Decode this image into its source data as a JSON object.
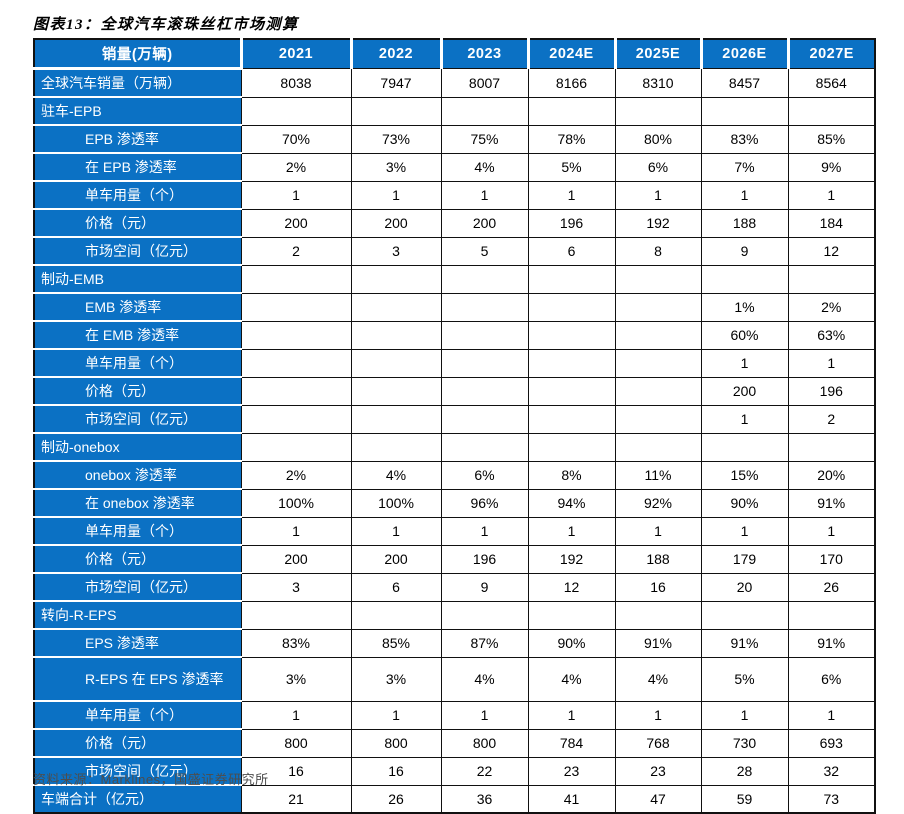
{
  "title": "图表13：全球汽车滚珠丝杠市场测算",
  "colors": {
    "header_bg": "#0b71c4",
    "label_bg": "#0b71c4",
    "header_text": "#ffffff",
    "body_text": "#000000",
    "border": "#111111"
  },
  "table": {
    "header": [
      "销量(万辆)",
      "2021",
      "2022",
      "2023",
      "2024E",
      "2025E",
      "2026E",
      "2027E"
    ],
    "rows": [
      {
        "label": "全球汽车销量（万辆）",
        "style": "plain",
        "values": [
          "8038",
          "7947",
          "8007",
          "8166",
          "8310",
          "8457",
          "8564"
        ]
      },
      {
        "label": "驻车-EPB",
        "style": "section",
        "values": [
          "",
          "",
          "",
          "",
          "",
          "",
          ""
        ]
      },
      {
        "label": "EPB 渗透率",
        "style": "indent",
        "values": [
          "70%",
          "73%",
          "75%",
          "78%",
          "80%",
          "83%",
          "85%"
        ]
      },
      {
        "label": "在 EPB 渗透率",
        "style": "indent",
        "values": [
          "2%",
          "3%",
          "4%",
          "5%",
          "6%",
          "7%",
          "9%"
        ]
      },
      {
        "label": "单车用量（个）",
        "style": "indent",
        "values": [
          "1",
          "1",
          "1",
          "1",
          "1",
          "1",
          "1"
        ]
      },
      {
        "label": "价格（元）",
        "style": "indent",
        "values": [
          "200",
          "200",
          "200",
          "196",
          "192",
          "188",
          "184"
        ]
      },
      {
        "label": "市场空间（亿元）",
        "style": "indent",
        "values": [
          "2",
          "3",
          "5",
          "6",
          "8",
          "9",
          "12"
        ]
      },
      {
        "label": "制动-EMB",
        "style": "section",
        "values": [
          "",
          "",
          "",
          "",
          "",
          "",
          ""
        ]
      },
      {
        "label": "EMB 渗透率",
        "style": "indent",
        "values": [
          "",
          "",
          "",
          "",
          "",
          "1%",
          "2%"
        ]
      },
      {
        "label": "在 EMB 渗透率",
        "style": "indent",
        "values": [
          "",
          "",
          "",
          "",
          "",
          "60%",
          "63%"
        ]
      },
      {
        "label": "单车用量（个）",
        "style": "indent",
        "values": [
          "",
          "",
          "",
          "",
          "",
          "1",
          "1"
        ]
      },
      {
        "label": "价格（元）",
        "style": "indent",
        "values": [
          "",
          "",
          "",
          "",
          "",
          "200",
          "196"
        ]
      },
      {
        "label": "市场空间（亿元）",
        "style": "indent",
        "values": [
          "",
          "",
          "",
          "",
          "",
          "1",
          "2"
        ]
      },
      {
        "label": "制动-onebox",
        "style": "section",
        "values": [
          "",
          "",
          "",
          "",
          "",
          "",
          ""
        ]
      },
      {
        "label": "onebox 渗透率",
        "style": "indent",
        "values": [
          "2%",
          "4%",
          "6%",
          "8%",
          "11%",
          "15%",
          "20%"
        ]
      },
      {
        "label": "在 onebox 渗透率",
        "style": "indent",
        "values": [
          "100%",
          "100%",
          "96%",
          "94%",
          "92%",
          "90%",
          "91%"
        ]
      },
      {
        "label": "单车用量（个）",
        "style": "indent",
        "values": [
          "1",
          "1",
          "1",
          "1",
          "1",
          "1",
          "1"
        ]
      },
      {
        "label": "价格（元）",
        "style": "indent",
        "values": [
          "200",
          "200",
          "196",
          "192",
          "188",
          "179",
          "170"
        ]
      },
      {
        "label": "市场空间（亿元）",
        "style": "indent",
        "values": [
          "3",
          "6",
          "9",
          "12",
          "16",
          "20",
          "26"
        ]
      },
      {
        "label": "转向-R-EPS",
        "style": "section",
        "values": [
          "",
          "",
          "",
          "",
          "",
          "",
          ""
        ]
      },
      {
        "label": "EPS 渗透率",
        "style": "indent",
        "values": [
          "83%",
          "85%",
          "87%",
          "90%",
          "91%",
          "91%",
          "91%"
        ]
      },
      {
        "label": "R-EPS 在 EPS 渗透率",
        "style": "indent tall",
        "values": [
          "3%",
          "3%",
          "4%",
          "4%",
          "4%",
          "5%",
          "6%"
        ]
      },
      {
        "label": "单车用量（个）",
        "style": "indent",
        "values": [
          "1",
          "1",
          "1",
          "1",
          "1",
          "1",
          "1"
        ]
      },
      {
        "label": "价格（元）",
        "style": "indent",
        "values": [
          "800",
          "800",
          "800",
          "784",
          "768",
          "730",
          "693"
        ]
      },
      {
        "label": "市场空间（亿元）",
        "style": "indent",
        "values": [
          "16",
          "16",
          "22",
          "23",
          "23",
          "28",
          "32"
        ]
      },
      {
        "label": "车端合计（亿元）",
        "style": "plain",
        "values": [
          "21",
          "26",
          "36",
          "41",
          "47",
          "59",
          "73"
        ]
      }
    ]
  },
  "footer": {
    "source_note": "资料来源：Marklines，国盛证券研究所",
    "note": "clipped at bottom edge of screenshot"
  }
}
